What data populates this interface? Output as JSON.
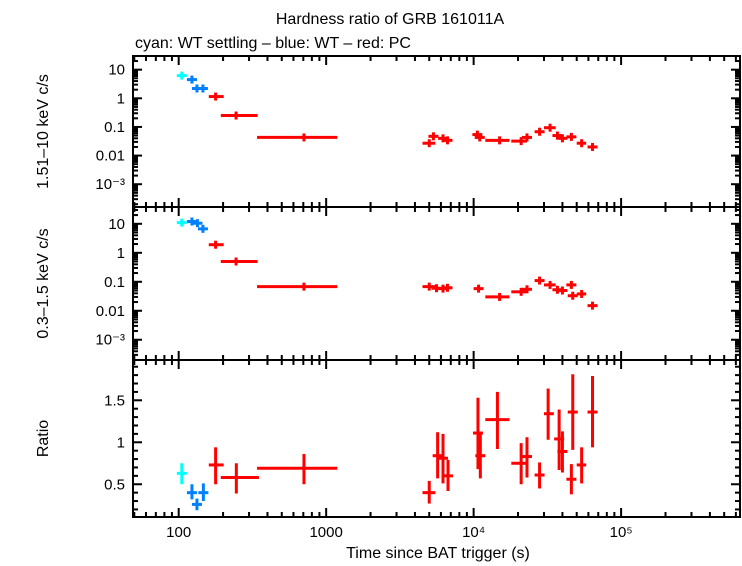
{
  "chart_data": {
    "type": "scatter",
    "title": "Hardness ratio of GRB 161011A",
    "subtitle": "cyan: WT settling – blue: WT – red: PC",
    "xlabel": "Time since BAT trigger (s)",
    "xscale": "log",
    "xlim": [
      49,
      640000
    ],
    "xticks": [
      {
        "v": 100,
        "label": "100"
      },
      {
        "v": 1000,
        "label": "1000"
      },
      {
        "v": 10000,
        "label": "10⁴"
      },
      {
        "v": 100000,
        "label": "10⁵"
      }
    ],
    "colors": {
      "WT settling": "#00ffff",
      "WT": "#0080ff",
      "PC": "#ff0000"
    },
    "panels": [
      {
        "ylabel": "1.51–10 keV c/s",
        "yscale": "log",
        "ylim": [
          0.00016,
          30
        ],
        "yticks": [
          {
            "v": 10,
            "label": "10"
          },
          {
            "v": 1,
            "label": "1"
          },
          {
            "v": 0.1,
            "label": "0.1"
          },
          {
            "v": 0.01,
            "label": "0.01"
          },
          {
            "v": 0.001,
            "label": "10⁻³"
          }
        ],
        "series": [
          {
            "name": "WT settling",
            "points": [
              {
                "t": 105,
                "v": 6.2
              }
            ]
          },
          {
            "name": "WT",
            "points": [
              {
                "t": 123,
                "v": 4.5
              },
              {
                "t": 133,
                "v": 2.2
              },
              {
                "t": 146,
                "v": 2.2
              }
            ]
          },
          {
            "name": "PC",
            "points": [
              {
                "t": 178,
                "v": 1.15,
                "tlo": 160,
                "thi": 202
              },
              {
                "t": 245,
                "v": 0.25,
                "tlo": 193,
                "thi": 343
              },
              {
                "t": 707,
                "v": 0.043,
                "tlo": 340,
                "thi": 1190
              },
              {
                "t": 5000,
                "v": 0.027,
                "tlo": 4500,
                "thi": 5500
              },
              {
                "t": 5340,
                "v": 0.047
              },
              {
                "t": 6200,
                "v": 0.04
              },
              {
                "t": 6650,
                "v": 0.034
              },
              {
                "t": 10600,
                "v": 0.054
              },
              {
                "t": 11000,
                "v": 0.043
              },
              {
                "t": 15000,
                "v": 0.034,
                "tlo": 12000,
                "thi": 17500
              },
              {
                "t": 21000,
                "v": 0.032,
                "tlo": 18000,
                "thi": 23000
              },
              {
                "t": 23000,
                "v": 0.043
              },
              {
                "t": 28000,
                "v": 0.068
              },
              {
                "t": 33000,
                "v": 0.094,
                "tlo": 30000,
                "thi": 36000
              },
              {
                "t": 37000,
                "v": 0.05
              },
              {
                "t": 40000,
                "v": 0.04
              },
              {
                "t": 46000,
                "v": 0.045
              },
              {
                "t": 54000,
                "v": 0.027,
                "tlo": 50000,
                "thi": 58000
              },
              {
                "t": 64000,
                "v": 0.02
              }
            ]
          }
        ]
      },
      {
        "ylabel": "0.3–1.5 keV c/s",
        "yscale": "log",
        "ylim": [
          0.0002,
          38
        ],
        "yticks": [
          {
            "v": 10,
            "label": "10"
          },
          {
            "v": 1,
            "label": "1"
          },
          {
            "v": 0.1,
            "label": "0.1"
          },
          {
            "v": 0.01,
            "label": "0.01"
          },
          {
            "v": 0.001,
            "label": "10⁻³"
          }
        ],
        "series": [
          {
            "name": "WT settling",
            "points": [
              {
                "t": 105,
                "v": 11
              }
            ]
          },
          {
            "name": "WT",
            "points": [
              {
                "t": 123,
                "v": 12
              },
              {
                "t": 134,
                "v": 10.5
              },
              {
                "t": 146,
                "v": 6.7
              }
            ]
          },
          {
            "name": "PC",
            "points": [
              {
                "t": 178,
                "v": 1.9,
                "tlo": 160,
                "thi": 202
              },
              {
                "t": 245,
                "v": 0.5,
                "tlo": 193,
                "thi": 343
              },
              {
                "t": 707,
                "v": 0.068,
                "tlo": 340,
                "thi": 1190
              },
              {
                "t": 5000,
                "v": 0.068,
                "tlo": 4500,
                "thi": 5500
              },
              {
                "t": 5600,
                "v": 0.06
              },
              {
                "t": 6200,
                "v": 0.058
              },
              {
                "t": 6650,
                "v": 0.062
              },
              {
                "t": 10800,
                "v": 0.058
              },
              {
                "t": 15000,
                "v": 0.03,
                "tlo": 12000,
                "thi": 17500
              },
              {
                "t": 21000,
                "v": 0.045,
                "tlo": 18000,
                "thi": 23000
              },
              {
                "t": 23000,
                "v": 0.055
              },
              {
                "t": 28000,
                "v": 0.11
              },
              {
                "t": 33000,
                "v": 0.078,
                "tlo": 30000,
                "thi": 36000
              },
              {
                "t": 37000,
                "v": 0.053
              },
              {
                "t": 40000,
                "v": 0.05
              },
              {
                "t": 46000,
                "v": 0.078
              },
              {
                "t": 47000,
                "v": 0.033
              },
              {
                "t": 54000,
                "v": 0.038,
                "tlo": 50000,
                "thi": 58000
              },
              {
                "t": 64000,
                "v": 0.015
              }
            ]
          }
        ]
      },
      {
        "ylabel": "Ratio",
        "yscale": "linear",
        "ylim": [
          0.11,
          1.98
        ],
        "yticks": [
          {
            "v": 1.5,
            "label": "1.5"
          },
          {
            "v": 1,
            "label": "1"
          },
          {
            "v": 0.5,
            "label": "0.5"
          }
        ],
        "series": [
          {
            "name": "WT settling",
            "points": [
              {
                "t": 105,
                "v": 0.63,
                "vlo": 0.5,
                "vhi": 0.75
              }
            ]
          },
          {
            "name": "WT",
            "points": [
              {
                "t": 123,
                "v": 0.4,
                "vlo": 0.32,
                "vhi": 0.5
              },
              {
                "t": 133,
                "v": 0.26,
                "vlo": 0.19,
                "vhi": 0.33
              },
              {
                "t": 147,
                "v": 0.4,
                "vlo": 0.3,
                "vhi": 0.51
              }
            ]
          },
          {
            "name": "PC",
            "points": [
              {
                "t": 178,
                "v": 0.73,
                "vlo": 0.5,
                "vhi": 0.94,
                "tlo": 160,
                "thi": 202
              },
              {
                "t": 246,
                "v": 0.58,
                "vlo": 0.39,
                "vhi": 0.75,
                "tlo": 193,
                "thi": 350
              },
              {
                "t": 707,
                "v": 0.69,
                "vlo": 0.5,
                "vhi": 0.86,
                "tlo": 340,
                "thi": 1190
              },
              {
                "t": 5000,
                "v": 0.4,
                "vlo": 0.27,
                "vhi": 0.54,
                "tlo": 4500,
                "thi": 5500
              },
              {
                "t": 5700,
                "v": 0.84,
                "vlo": 0.57,
                "vhi": 1.12
              },
              {
                "t": 6200,
                "v": 0.81,
                "vlo": 0.51,
                "vhi": 1.1
              },
              {
                "t": 6700,
                "v": 0.6,
                "vlo": 0.42,
                "vhi": 0.79
              },
              {
                "t": 10700,
                "v": 1.11,
                "vlo": 0.68,
                "vhi": 1.53
              },
              {
                "t": 11100,
                "v": 0.84,
                "vlo": 0.57,
                "vhi": 1.1
              },
              {
                "t": 14500,
                "v": 1.27,
                "vlo": 0.92,
                "vhi": 1.6,
                "tlo": 12000,
                "thi": 17500
              },
              {
                "t": 21000,
                "v": 0.75,
                "vlo": 0.5,
                "vhi": 0.99,
                "tlo": 18000,
                "thi": 23000
              },
              {
                "t": 23000,
                "v": 0.83,
                "vlo": 0.58,
                "vhi": 1.06
              },
              {
                "t": 28000,
                "v": 0.61,
                "vlo": 0.45,
                "vhi": 0.76
              },
              {
                "t": 32000,
                "v": 1.34,
                "vlo": 1.03,
                "vhi": 1.64,
                "tlo": 30000,
                "thi": 35000
              },
              {
                "t": 38000,
                "v": 1.04,
                "vlo": 0.67,
                "vhi": 1.39
              },
              {
                "t": 40000,
                "v": 0.89,
                "vlo": 0.64,
                "vhi": 1.13
              },
              {
                "t": 46000,
                "v": 0.56,
                "vlo": 0.38,
                "vhi": 0.74
              },
              {
                "t": 47000,
                "v": 1.36,
                "vlo": 0.91,
                "vhi": 1.81
              },
              {
                "t": 54000,
                "v": 0.73,
                "vlo": 0.51,
                "vhi": 0.94,
                "tlo": 50000,
                "thi": 58000
              },
              {
                "t": 64000,
                "v": 1.36,
                "vlo": 0.94,
                "vhi": 1.79
              }
            ]
          }
        ]
      }
    ]
  }
}
